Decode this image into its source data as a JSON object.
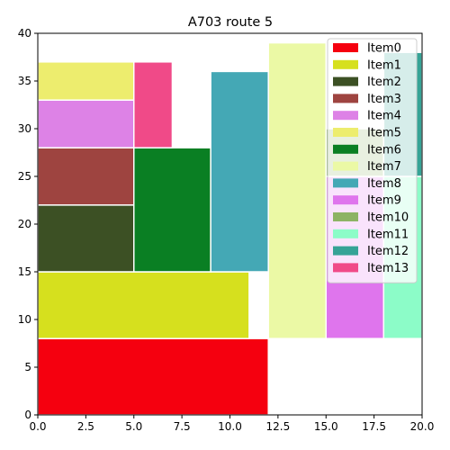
{
  "chart_data": {
    "type": "treemap-rectangles",
    "title": "A703 route 5",
    "xlim": [
      0,
      20
    ],
    "ylim": [
      0,
      40
    ],
    "xticks": [
      0,
      2.5,
      5,
      7.5,
      10,
      12.5,
      15,
      17.5,
      20
    ],
    "xtick_labels": [
      "0.0",
      "2.5",
      "5.0",
      "7.5",
      "10.0",
      "12.5",
      "15.0",
      "17.5",
      "20.0"
    ],
    "yticks": [
      0,
      5,
      10,
      15,
      20,
      25,
      30,
      35,
      40
    ],
    "ytick_labels": [
      "0",
      "5",
      "10",
      "15",
      "20",
      "25",
      "30",
      "35",
      "40"
    ],
    "grid": false,
    "legend_position": "top-right",
    "items": [
      {
        "name": "Item0",
        "x0": 0,
        "y0": 0,
        "x1": 12,
        "y1": 8,
        "color": "#f5000f"
      },
      {
        "name": "Item1",
        "x0": 0,
        "y0": 8,
        "x1": 11,
        "y1": 15,
        "color": "#d6e01e"
      },
      {
        "name": "Item2",
        "x0": 0,
        "y0": 15,
        "x1": 5,
        "y1": 22,
        "color": "#3c5024"
      },
      {
        "name": "Item3",
        "x0": 0,
        "y0": 22,
        "x1": 5,
        "y1": 28,
        "color": "#9e4440"
      },
      {
        "name": "Item4",
        "x0": 0,
        "y0": 28,
        "x1": 5,
        "y1": 33,
        "color": "#dd82e6"
      },
      {
        "name": "Item5",
        "x0": 0,
        "y0": 33,
        "x1": 5,
        "y1": 37,
        "color": "#eded6e"
      },
      {
        "name": "Item6",
        "x0": 5,
        "y0": 15,
        "x1": 9,
        "y1": 28,
        "color": "#0a7f23"
      },
      {
        "name": "Item7",
        "x0": 12,
        "y0": 8,
        "x1": 15,
        "y1": 39,
        "color": "#ebf9a5"
      },
      {
        "name": "Item8",
        "x0": 9,
        "y0": 15,
        "x1": 12,
        "y1": 36,
        "color": "#44a8b5"
      },
      {
        "name": "Item9",
        "x0": 15,
        "y0": 8,
        "x1": 18,
        "y1": 25,
        "color": "#df75ed"
      },
      {
        "name": "Item10",
        "x0": 15,
        "y0": 25,
        "x1": 18,
        "y1": 30,
        "color": "#8db364"
      },
      {
        "name": "Item11",
        "x0": 18,
        "y0": 8,
        "x1": 20,
        "y1": 25,
        "color": "#8cfcc8"
      },
      {
        "name": "Item12",
        "x0": 18,
        "y0": 25,
        "x1": 20,
        "y1": 38,
        "color": "#36a396"
      },
      {
        "name": "Item13",
        "x0": 5,
        "y0": 28,
        "x1": 7,
        "y1": 37,
        "color": "#f04a88"
      }
    ]
  }
}
